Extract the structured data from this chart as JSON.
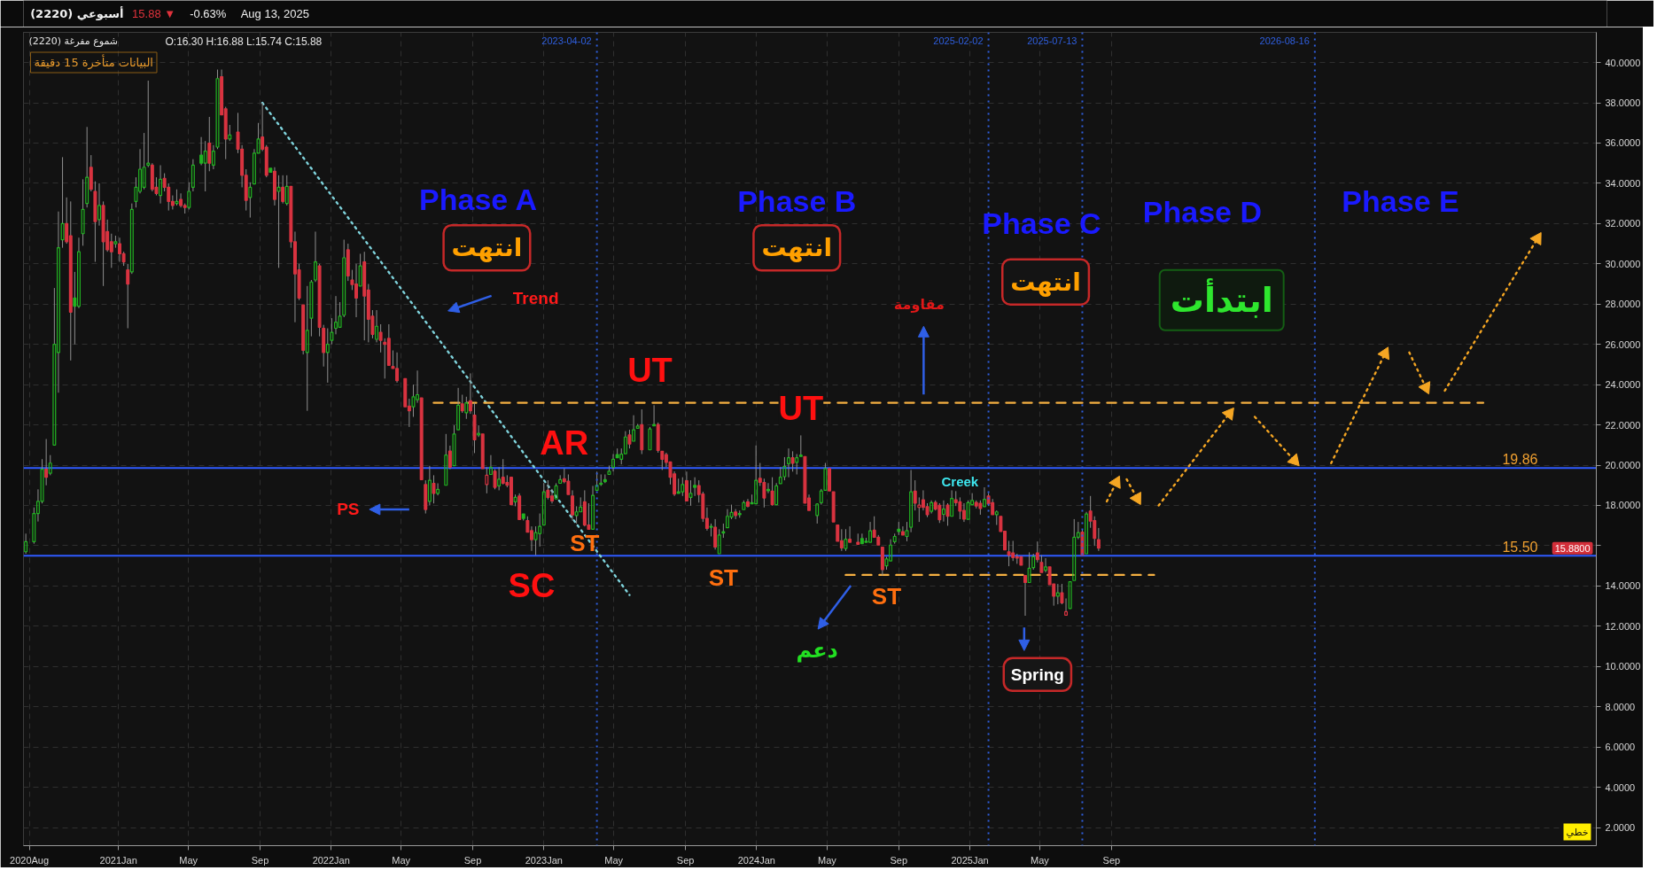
{
  "chart_data": {
    "type": "candlestick",
    "title": "(2220)  أسبوعي",
    "subtitle": "(2220)  شموع مفرغة",
    "xlim": [
      "2020-07-22",
      "2027-12-12"
    ],
    "ylim": [
      1.1,
      41.5
    ],
    "xticks": [
      {
        "value": "2020-08-01",
        "label": "2020Aug"
      },
      {
        "value": "2021-01-01",
        "label": "2021Jan"
      },
      {
        "value": "2021-05-01",
        "label": "May"
      },
      {
        "value": "2021-09-01",
        "label": "Sep"
      },
      {
        "value": "2022-01-01",
        "label": "2022Jan"
      },
      {
        "value": "2022-05-01",
        "label": "May"
      },
      {
        "value": "2022-09-01",
        "label": "Sep"
      },
      {
        "value": "2023-01-01",
        "label": "2023Jan"
      },
      {
        "value": "2023-05-01",
        "label": "May"
      },
      {
        "value": "2023-09-01",
        "label": "Sep"
      },
      {
        "value": "2024-01-01",
        "label": "2024Jan"
      },
      {
        "value": "2024-05-01",
        "label": "May"
      },
      {
        "value": "2024-09-01",
        "label": "Sep"
      },
      {
        "value": "2025-01-01",
        "label": "2025Jan"
      },
      {
        "value": "2025-05-01",
        "label": "May"
      },
      {
        "value": "2025-09-01",
        "label": "Sep"
      }
    ],
    "yticks": [
      {
        "value": 2,
        "label": "2.0000"
      },
      {
        "value": 4,
        "label": "4.0000"
      },
      {
        "value": 6,
        "label": "6.0000"
      },
      {
        "value": 8,
        "label": "8.0000"
      },
      {
        "value": 10,
        "label": "10.0000"
      },
      {
        "value": 12,
        "label": "12.0000"
      },
      {
        "value": 14,
        "label": "14.0000"
      },
      {
        "value": 16,
        "label": null
      },
      {
        "value": 18,
        "label": "18.0000"
      },
      {
        "value": 20,
        "label": "20.0000"
      },
      {
        "value": 22,
        "label": "22.0000"
      },
      {
        "value": 24,
        "label": "24.0000"
      },
      {
        "value": 26,
        "label": "26.0000"
      },
      {
        "value": 28,
        "label": "28.0000"
      },
      {
        "value": 30,
        "label": "30.0000"
      },
      {
        "value": 32,
        "label": "32.0000"
      },
      {
        "value": 34,
        "label": "34.0000"
      },
      {
        "value": 36,
        "label": "36.0000"
      },
      {
        "value": 38,
        "label": "38.0000"
      },
      {
        "value": 40,
        "label": "40.0000"
      }
    ],
    "grid": true,
    "x": [
      "2020-07-26",
      "2020-08-09",
      "2020-08-16",
      "2020-08-23",
      "2020-08-30",
      "2020-09-06",
      "2020-09-13",
      "2020-09-20",
      "2020-09-27",
      "2020-10-04",
      "2020-10-11",
      "2020-10-18",
      "2020-10-25",
      "2020-11-01",
      "2020-11-08",
      "2020-11-15",
      "2020-11-22",
      "2020-11-29",
      "2020-12-06",
      "2020-12-13",
      "2020-12-20",
      "2020-12-27",
      "2021-01-03",
      "2021-01-10",
      "2021-01-17",
      "2021-01-24",
      "2021-01-31",
      "2021-02-07",
      "2021-02-14",
      "2021-02-21",
      "2021-02-28",
      "2021-03-07",
      "2021-03-14",
      "2021-03-21",
      "2021-03-28",
      "2021-04-04",
      "2021-04-11",
      "2021-04-18",
      "2021-04-25",
      "2021-05-02",
      "2021-05-09",
      "2021-05-23",
      "2021-05-30",
      "2021-06-06",
      "2021-06-13",
      "2021-06-20",
      "2021-06-27",
      "2021-07-04",
      "2021-07-11",
      "2021-07-25",
      "2021-08-01",
      "2021-08-08",
      "2021-08-15",
      "2021-08-22",
      "2021-08-29",
      "2021-09-05",
      "2021-09-12",
      "2021-09-19",
      "2021-09-26",
      "2021-10-03",
      "2021-10-10",
      "2021-10-17",
      "2021-10-24",
      "2021-10-31",
      "2021-11-07",
      "2021-11-14",
      "2021-11-21",
      "2021-11-28",
      "2021-12-05",
      "2021-12-12",
      "2021-12-19",
      "2021-12-26",
      "2022-01-02",
      "2022-01-09",
      "2022-01-16",
      "2022-01-23",
      "2022-01-30",
      "2022-02-06",
      "2022-02-13",
      "2022-02-20",
      "2022-02-27",
      "2022-03-06",
      "2022-03-13",
      "2022-03-20",
      "2022-03-27",
      "2022-04-03",
      "2022-04-10",
      "2022-04-17",
      "2022-04-24",
      "2022-05-08",
      "2022-05-15",
      "2022-05-22",
      "2022-05-29",
      "2022-06-05",
      "2022-06-12",
      "2022-06-19",
      "2022-06-26",
      "2022-07-03",
      "2022-07-17",
      "2022-07-24",
      "2022-07-31",
      "2022-08-07",
      "2022-08-14",
      "2022-08-21",
      "2022-08-28",
      "2022-09-04",
      "2022-09-11",
      "2022-09-18",
      "2022-09-25",
      "2022-10-02",
      "2022-10-09",
      "2022-10-16",
      "2022-10-23",
      "2022-10-30",
      "2022-11-06",
      "2022-11-13",
      "2022-11-20",
      "2022-11-27",
      "2022-12-04",
      "2022-12-11",
      "2022-12-18",
      "2022-12-25",
      "2023-01-01",
      "2023-01-08",
      "2023-01-15",
      "2023-01-22",
      "2023-01-29",
      "2023-02-05",
      "2023-02-12",
      "2023-02-19",
      "2023-02-26",
      "2023-03-05",
      "2023-03-12",
      "2023-03-19",
      "2023-03-26",
      "2023-04-02",
      "2023-04-09",
      "2023-04-16",
      "2023-04-23",
      "2023-04-30",
      "2023-05-07",
      "2023-05-14",
      "2023-05-21",
      "2023-05-28",
      "2023-06-04",
      "2023-06-11",
      "2023-06-18",
      "2023-07-02",
      "2023-07-09",
      "2023-07-16",
      "2023-07-23",
      "2023-07-30",
      "2023-08-06",
      "2023-08-13",
      "2023-08-20",
      "2023-08-27",
      "2023-09-03",
      "2023-09-10",
      "2023-09-17",
      "2023-09-24",
      "2023-10-01",
      "2023-10-08",
      "2023-10-15",
      "2023-10-22",
      "2023-10-29",
      "2023-11-05",
      "2023-11-12",
      "2023-11-19",
      "2023-11-26",
      "2023-12-03",
      "2023-12-10",
      "2023-12-17",
      "2023-12-24",
      "2023-12-31",
      "2024-01-07",
      "2024-01-14",
      "2024-01-21",
      "2024-01-28",
      "2024-02-04",
      "2024-02-11",
      "2024-02-18",
      "2024-02-25",
      "2024-03-03",
      "2024-03-10",
      "2024-03-17",
      "2024-03-24",
      "2024-03-31",
      "2024-04-14",
      "2024-04-21",
      "2024-04-28",
      "2024-05-05",
      "2024-05-12",
      "2024-05-19",
      "2024-05-26",
      "2024-06-02",
      "2024-06-09",
      "2024-06-23",
      "2024-06-30",
      "2024-07-07",
      "2024-07-14",
      "2024-07-21",
      "2024-07-28",
      "2024-08-04",
      "2024-08-11",
      "2024-08-18",
      "2024-08-25",
      "2024-09-01",
      "2024-09-08",
      "2024-09-15",
      "2024-09-22",
      "2024-09-29",
      "2024-10-06",
      "2024-10-13",
      "2024-10-20",
      "2024-10-27",
      "2024-11-03",
      "2024-11-10",
      "2024-11-17",
      "2024-11-24",
      "2024-12-01",
      "2024-12-08",
      "2024-12-15",
      "2024-12-22",
      "2024-12-29",
      "2025-01-05",
      "2025-01-12",
      "2025-01-19",
      "2025-01-26",
      "2025-02-02",
      "2025-02-09",
      "2025-02-16",
      "2025-02-23",
      "2025-03-02",
      "2025-03-09",
      "2025-03-16",
      "2025-03-23",
      "2025-03-30",
      "2025-04-06",
      "2025-04-13",
      "2025-04-20",
      "2025-04-27",
      "2025-05-04",
      "2025-05-11",
      "2025-05-18",
      "2025-05-25",
      "2025-06-01",
      "2025-06-08",
      "2025-06-15",
      "2025-06-22",
      "2025-06-29",
      "2025-07-06",
      "2025-07-13",
      "2025-07-20",
      "2025-07-27",
      "2025-08-03",
      "2025-08-10"
    ],
    "ohlc": [
      [
        15.7,
        16.6,
        15.6,
        16.2
      ],
      [
        16.2,
        17.9,
        16.1,
        17.6
      ],
      [
        17.6,
        18.8,
        17.2,
        18.2
      ],
      [
        18.2,
        20.3,
        18.1,
        19.8
      ],
      [
        19.8,
        21.3,
        19.0,
        19.4
      ],
      [
        19.6,
        20.5,
        19.5,
        20.1
      ],
      [
        21.0,
        28.8,
        21.0,
        26.0
      ],
      [
        25.6,
        32.6,
        23.6,
        30.8
      ],
      [
        31.2,
        35.3,
        30.8,
        32.0
      ],
      [
        32.0,
        33.3,
        31.0,
        31.1
      ],
      [
        31.4,
        33.1,
        25.2,
        27.6
      ],
      [
        28.3,
        29.6,
        26.0,
        27.9
      ],
      [
        27.9,
        31.3,
        27.8,
        30.6
      ],
      [
        31.5,
        34.2,
        30.9,
        32.7
      ],
      [
        33.0,
        36.8,
        32.8,
        34.3
      ],
      [
        34.8,
        35.4,
        33.6,
        33.7
      ],
      [
        33.6,
        34.1,
        30.1,
        32.1
      ],
      [
        32.2,
        34.0,
        31.9,
        32.9
      ],
      [
        32.9,
        33.1,
        28.9,
        31.1
      ],
      [
        31.6,
        32.2,
        30.6,
        30.7
      ],
      [
        31.1,
        31.5,
        29.8,
        30.6
      ],
      [
        31.0,
        31.4,
        30.8,
        31.1
      ],
      [
        31.0,
        31.3,
        30.1,
        30.5
      ],
      [
        30.5,
        30.6,
        29.9,
        30.1
      ],
      [
        29.7,
        30.0,
        26.8,
        29.0
      ],
      [
        29.6,
        33.0,
        29.5,
        32.7
      ],
      [
        33.1,
        34.3,
        32.8,
        33.8
      ],
      [
        33.6,
        35.7,
        33.5,
        34.7
      ],
      [
        33.8,
        36.5,
        33.7,
        34.8
      ],
      [
        34.9,
        39.1,
        34.8,
        35.0
      ],
      [
        34.9,
        35.0,
        33.6,
        33.7
      ],
      [
        33.8,
        34.3,
        33.4,
        33.5
      ],
      [
        33.4,
        34.9,
        33.0,
        34.2
      ],
      [
        34.25,
        34.5,
        33.6,
        33.8
      ],
      [
        33.8,
        34.0,
        32.65,
        33.1
      ],
      [
        33.1,
        33.4,
        32.7,
        32.9
      ],
      [
        33.0,
        33.7,
        32.9,
        33.1
      ],
      [
        33.2,
        33.5,
        32.8,
        32.9
      ],
      [
        32.9,
        33.0,
        32.5,
        32.8
      ],
      [
        32.8,
        34.05,
        32.7,
        33.6
      ],
      [
        33.8,
        35.2,
        33.6,
        34.9
      ],
      [
        35.4,
        36.3,
        34.9,
        35.0
      ],
      [
        35.0,
        36.1,
        33.6,
        35.6
      ],
      [
        36.0,
        37.3,
        34.6,
        35.0
      ],
      [
        34.9,
        35.9,
        34.7,
        35.6
      ],
      [
        35.8,
        39.65,
        35.7,
        39.2
      ],
      [
        39.3,
        39.65,
        37.4,
        37.4
      ],
      [
        37.7,
        37.8,
        35.2,
        36.2
      ],
      [
        36.2,
        36.9,
        36.1,
        36.4
      ],
      [
        36.55,
        37.5,
        35.5,
        35.7
      ],
      [
        35.7,
        35.9,
        33.8,
        34.4
      ],
      [
        34.4,
        34.7,
        32.65,
        33.15
      ],
      [
        33.3,
        34.05,
        32.3,
        33.8
      ],
      [
        33.97,
        35.7,
        33.97,
        35.5
      ],
      [
        35.5,
        37.0,
        35.5,
        36.2
      ],
      [
        36.3,
        38.0,
        35.6,
        35.7
      ],
      [
        35.8,
        35.9,
        34.3,
        34.4
      ],
      [
        34.75,
        34.75,
        34.55,
        34.55
      ],
      [
        34.6,
        34.8,
        32.9,
        33.2
      ],
      [
        33.6,
        34.4,
        29.8,
        33.8
      ],
      [
        33.8,
        34.4,
        33.0,
        33.1
      ],
      [
        33.0,
        34.4,
        32.9,
        33.85
      ],
      [
        33.85,
        33.85,
        30.8,
        31.1
      ],
      [
        31.1,
        31.6,
        27.1,
        29.5
      ],
      [
        29.7,
        30.0,
        28.2,
        28.3
      ],
      [
        27.96,
        27.96,
        25.5,
        25.7
      ],
      [
        25.6,
        28.9,
        22.7,
        26.7
      ],
      [
        27.3,
        29.2,
        26.4,
        29.1
      ],
      [
        29.2,
        31.6,
        29.1,
        30.1
      ],
      [
        29.9,
        30.0,
        26.4,
        26.85
      ],
      [
        26.8,
        26.97,
        24.9,
        25.6
      ],
      [
        25.6,
        26.8,
        24.1,
        26.0
      ],
      [
        26.2,
        27.3,
        26.0,
        26.6
      ],
      [
        26.8,
        28.4,
        26.5,
        27.1
      ],
      [
        26.85,
        28.1,
        26.85,
        27.4
      ],
      [
        27.45,
        31.2,
        27.35,
        30.3
      ],
      [
        30.7,
        31.0,
        29.15,
        29.4
      ],
      [
        29.2,
        29.7,
        28.7,
        28.97
      ],
      [
        29.0,
        30.0,
        27.35,
        28.3
      ],
      [
        28.9,
        30.5,
        28.9,
        29.9
      ],
      [
        30.1,
        30.6,
        26.2,
        28.4
      ],
      [
        28.7,
        29.0,
        26.1,
        27.25
      ],
      [
        27.4,
        27.7,
        26.3,
        26.5
      ],
      [
        26.25,
        27.7,
        26.1,
        26.9
      ],
      [
        26.6,
        27.0,
        25.6,
        26.2
      ],
      [
        26.1,
        26.3,
        24.3,
        26.0
      ],
      [
        26.3,
        27.0,
        24.96,
        24.96
      ],
      [
        24.9,
        25.7,
        24.8,
        24.8
      ],
      [
        24.8,
        25.6,
        24.1,
        24.2
      ],
      [
        24.3,
        24.3,
        22.9,
        22.9
      ],
      [
        22.94,
        23.3,
        21.9,
        22.7
      ],
      [
        22.9,
        24.0,
        22.4,
        23.4
      ],
      [
        23.25,
        24.7,
        23.1,
        23.5
      ],
      [
        23.34,
        23.34,
        19.28,
        19.28
      ],
      [
        19.04,
        19.25,
        17.6,
        17.8
      ],
      [
        18.2,
        19.97,
        18.0,
        19.25
      ],
      [
        19.1,
        19.5,
        18.1,
        18.6
      ],
      [
        18.6,
        19.1,
        18.5,
        18.8
      ],
      [
        19.0,
        21.55,
        19.0,
        20.5
      ],
      [
        20.7,
        20.97,
        19.8,
        19.9
      ],
      [
        19.97,
        21.98,
        19.97,
        21.55
      ],
      [
        21.76,
        23.84,
        21.76,
        22.98
      ],
      [
        23.05,
        23.5,
        22.6,
        22.7
      ],
      [
        22.6,
        23.4,
        22.3,
        23.1
      ],
      [
        23.2,
        24.56,
        22.55,
        22.7
      ],
      [
        22.48,
        23.1,
        20.6,
        21.26
      ],
      [
        21.5,
        21.98,
        21.4,
        21.58
      ],
      [
        21.55,
        21.55,
        19.83,
        19.83
      ],
      [
        19.04,
        19.9,
        18.6,
        19.5
      ],
      [
        19.54,
        20.5,
        19.54,
        19.9
      ],
      [
        19.7,
        19.8,
        18.8,
        18.9
      ],
      [
        18.97,
        19.9,
        18.75,
        19.3
      ],
      [
        19.4,
        20.3,
        19.04,
        19.1
      ],
      [
        19.14,
        19.5,
        18.9,
        19.0
      ],
      [
        19.4,
        19.4,
        18.04,
        18.04
      ],
      [
        18.18,
        18.54,
        17.96,
        18.4
      ],
      [
        18.47,
        18.6,
        17.3,
        17.3
      ],
      [
        17.58,
        17.58,
        17.25,
        17.35
      ],
      [
        17.25,
        17.46,
        16.67,
        16.67
      ],
      [
        16.75,
        16.96,
        15.74,
        16.3
      ],
      [
        16.3,
        16.96,
        15.53,
        16.65
      ],
      [
        16.6,
        17.6,
        15.96,
        16.96
      ],
      [
        17.03,
        19.11,
        17.03,
        18.68
      ],
      [
        18.75,
        19.25,
        18.3,
        18.4
      ],
      [
        18.47,
        18.82,
        18.1,
        18.22
      ],
      [
        18.32,
        19.1,
        18.32,
        18.97
      ],
      [
        19.1,
        19.5,
        19.1,
        19.28
      ],
      [
        19.33,
        19.83,
        19.1,
        19.18
      ],
      [
        19.2,
        19.54,
        18.54,
        18.54
      ],
      [
        18.47,
        18.75,
        17.25,
        17.53
      ],
      [
        17.5,
        17.96,
        17.1,
        17.68
      ],
      [
        17.68,
        18.4,
        17.68,
        17.92
      ],
      [
        18.18,
        18.75,
        16.96,
        17.03
      ],
      [
        17.03,
        18.11,
        16.82,
        16.82
      ],
      [
        16.82,
        18.97,
        16.82,
        18.5
      ],
      [
        18.75,
        19.68,
        18.75,
        19.0
      ],
      [
        19.11,
        19.54,
        18.97,
        19.05
      ],
      [
        19.28,
        19.54,
        19.11,
        19.18
      ],
      [
        19.54,
        19.97,
        19.54,
        19.7
      ],
      [
        19.9,
        20.55,
        19.69,
        20.29
      ],
      [
        20.52,
        20.83,
        20.37,
        20.37
      ],
      [
        20.29,
        20.83,
        20.04,
        20.55
      ],
      [
        20.57,
        21.69,
        20.57,
        21.4
      ],
      [
        21.5,
        21.76,
        20.83,
        21.05
      ],
      [
        21.19,
        22.48,
        21.19,
        21.76
      ],
      [
        21.83,
        22.05,
        21.83,
        21.94
      ],
      [
        22.01,
        22.77,
        20.55,
        20.76
      ],
      [
        20.76,
        21.9,
        20.76,
        21.8
      ],
      [
        22.02,
        22.98,
        21.95,
        21.95
      ],
      [
        22.02,
        22.12,
        20.62,
        20.73
      ],
      [
        20.69,
        20.69,
        19.76,
        20.29
      ],
      [
        20.52,
        20.62,
        19.9,
        20.14
      ],
      [
        20.16,
        20.16,
        19.04,
        19.4
      ],
      [
        19.57,
        19.69,
        18.47,
        18.57
      ],
      [
        18.68,
        19.33,
        18.6,
        18.6
      ],
      [
        18.68,
        19.4,
        18.47,
        19.04
      ],
      [
        19.23,
        19.68,
        18.22,
        18.22
      ],
      [
        18.4,
        19.25,
        17.99,
        18.6
      ],
      [
        19.0,
        19.4,
        18.47,
        18.9
      ],
      [
        18.99,
        19.25,
        18.14,
        18.54
      ],
      [
        18.57,
        18.68,
        17.18,
        17.35
      ],
      [
        17.36,
        17.9,
        16.75,
        16.86
      ],
      [
        16.96,
        17.1,
        16.46,
        16.92
      ],
      [
        16.92,
        17.32,
        15.81,
        15.93
      ],
      [
        15.6,
        16.82,
        15.6,
        16.53
      ],
      [
        16.7,
        17.1,
        16.39,
        16.63
      ],
      [
        16.89,
        17.82,
        16.89,
        17.46
      ],
      [
        17.42,
        18.04,
        17.32,
        17.65
      ],
      [
        17.68,
        17.82,
        17.32,
        17.5
      ],
      [
        17.6,
        17.75,
        17.39,
        17.54
      ],
      [
        17.79,
        18.25,
        17.79,
        18.14
      ],
      [
        18.18,
        18.32,
        17.9,
        17.96
      ],
      [
        18.14,
        18.54,
        18.08,
        18.08
      ],
      [
        18.08,
        20.98,
        18.08,
        19.25
      ],
      [
        19.35,
        20.11,
        18.97,
        19.15
      ],
      [
        19.14,
        19.33,
        17.9,
        18.37
      ],
      [
        18.8,
        19.11,
        18.61,
        18.73
      ],
      [
        18.71,
        19.4,
        17.99,
        18.04
      ],
      [
        18.04,
        19.11,
        18.04,
        18.97
      ],
      [
        19.08,
        19.9,
        19.08,
        19.4
      ],
      [
        19.43,
        20.4,
        19.25,
        19.94
      ],
      [
        20.07,
        20.83,
        19.4,
        20.37
      ],
      [
        20.37,
        20.69,
        19.68,
        20.09
      ],
      [
        20.14,
        20.55,
        19.54,
        20.37
      ],
      [
        20.5,
        21.48,
        20.43,
        20.43
      ],
      [
        20.43,
        20.43,
        18.11,
        18.11
      ],
      [
        18.37,
        18.54,
        17.75,
        17.75
      ],
      [
        17.5,
        18.11,
        17.1,
        18.07
      ],
      [
        18.14,
        18.82,
        18.04,
        18.72
      ],
      [
        18.75,
        20.11,
        18.75,
        19.83
      ],
      [
        19.83,
        19.83,
        18.72,
        18.72
      ],
      [
        18.68,
        18.68,
        17.18,
        17.18
      ],
      [
        17.03,
        17.03,
        16.22,
        16.22
      ],
      [
        16.25,
        16.82,
        15.74,
        15.89
      ],
      [
        15.86,
        16.82,
        15.74,
        16.32
      ],
      [
        16.32,
        16.96,
        16.17,
        16.17
      ],
      [
        16.17,
        16.6,
        16.07,
        16.07
      ],
      [
        16.36,
        16.6,
        16.1,
        16.1
      ],
      [
        16.17,
        16.39,
        16.17,
        16.22
      ],
      [
        16.17,
        17.18,
        16.17,
        16.74
      ],
      [
        16.77,
        17.46,
        16.39,
        16.42
      ],
      [
        16.42,
        16.53,
        16.03,
        16.03
      ],
      [
        15.93,
        15.93,
        14.52,
        14.81
      ],
      [
        15.0,
        15.45,
        14.81,
        15.34
      ],
      [
        15.24,
        16.32,
        15.24,
        16.03
      ],
      [
        16.2,
        16.6,
        16.1,
        16.46
      ],
      [
        16.82,
        17.18,
        16.53,
        16.7
      ],
      [
        16.7,
        16.96,
        16.53,
        16.53
      ],
      [
        16.46,
        17.18,
        16.22,
        16.75
      ],
      [
        16.92,
        19.76,
        16.67,
        18.68
      ],
      [
        18.71,
        19.25,
        17.75,
        18.11
      ],
      [
        17.9,
        18.4,
        17.18,
        18.02
      ],
      [
        18.28,
        18.75,
        17.75,
        17.9
      ],
      [
        17.94,
        18.11,
        17.42,
        17.54
      ],
      [
        17.71,
        18.25,
        17.6,
        18.14
      ],
      [
        18.15,
        18.25,
        17.75,
        17.82
      ],
      [
        18.01,
        18.11,
        17.13,
        17.29
      ],
      [
        17.56,
        18.25,
        17.2,
        17.82
      ],
      [
        18.02,
        18.11,
        16.99,
        17.46
      ],
      [
        17.46,
        18.75,
        17.46,
        18.35
      ],
      [
        18.28,
        18.71,
        17.97,
        18.14
      ],
      [
        18.18,
        18.4,
        17.32,
        17.72
      ],
      [
        17.75,
        18.11,
        17.18,
        17.32
      ],
      [
        17.31,
        18.25,
        17.31,
        18.14
      ],
      [
        18.04,
        18.61,
        18.04,
        18.25
      ],
      [
        18.15,
        18.25,
        17.85,
        17.97
      ],
      [
        18.11,
        18.25,
        17.54,
        17.85
      ],
      [
        17.94,
        18.9,
        17.94,
        18.3
      ],
      [
        18.47,
        18.61,
        17.97,
        18.07
      ],
      [
        18.14,
        18.32,
        17.54,
        17.54
      ],
      [
        17.54,
        17.75,
        17.03,
        17.68
      ],
      [
        17.46,
        17.46,
        16.7,
        16.7
      ],
      [
        16.72,
        16.72,
        15.79,
        15.79
      ],
      [
        15.7,
        16.24,
        14.98,
        15.53
      ],
      [
        15.64,
        16.24,
        15.24,
        15.41
      ],
      [
        15.45,
        15.6,
        15.1,
        15.38
      ],
      [
        15.45,
        15.45,
        15.03,
        15.03
      ],
      [
        14.52,
        14.52,
        12.52,
        14.17
      ],
      [
        14.17,
        15.67,
        14.17,
        14.88
      ],
      [
        14.91,
        15.6,
        14.81,
        15.45
      ],
      [
        15.64,
        16.21,
        15.17,
        15.31
      ],
      [
        15.17,
        15.53,
        14.67,
        14.67
      ],
      [
        14.78,
        15.38,
        14.67,
        14.95
      ],
      [
        14.95,
        14.95,
        14.07,
        14.07
      ],
      [
        14.1,
        14.1,
        13.02,
        13.49
      ],
      [
        13.49,
        14.1,
        13.09,
        13.66
      ],
      [
        13.66,
        14.1,
        13.09,
        13.16
      ],
      [
        12.55,
        13.38,
        12.55,
        12.72
      ],
      [
        12.88,
        14.21,
        12.88,
        14.21
      ],
      [
        14.27,
        17.32,
        14.27,
        16.42
      ],
      [
        16.42,
        17.18,
        16.32,
        16.65
      ],
      [
        16.67,
        16.8,
        15.53,
        15.53
      ],
      [
        15.6,
        17.68,
        15.6,
        17.58
      ],
      [
        17.72,
        18.47,
        16.89,
        17.22
      ],
      [
        17.25,
        17.46,
        15.99,
        16.36
      ],
      [
        16.3,
        16.88,
        15.74,
        15.88
      ]
    ],
    "colors": [
      "#22b422",
      "#22b422",
      "#22b422",
      "#22b422",
      "#d93340",
      "#22b422",
      "#22b422",
      "#22b422",
      "#22b422",
      "#d93340",
      "#d93340",
      "#22b422",
      "#22b422",
      "#22b422",
      "#22b422",
      "#d93340",
      "#d93340",
      "#22b422",
      "#d93340",
      "#d93340",
      "#d93340",
      "#22b422",
      "#d93340",
      "#d93340",
      "#d93340",
      "#22b422",
      "#22b422",
      "#22b422",
      "#22b422",
      "#22b422",
      "#d93340",
      "#d93340",
      "#22b422",
      "#d93340",
      "#d93340",
      "#d93340",
      "#22b422",
      "#d93340",
      "#d93340",
      "#22b422",
      "#22b422",
      "#22b422",
      "#22b422",
      "#d93340",
      "#22b422",
      "#22b422",
      "#d93340",
      "#d93340",
      "#22b422",
      "#d93340",
      "#d93340",
      "#d93340",
      "#22b422",
      "#22b422",
      "#22b422",
      "#d93340",
      "#d93340",
      "#22b422",
      "#d93340",
      "#22b422",
      "#d93340",
      "#22b422",
      "#d93340",
      "#d93340",
      "#d93340",
      "#d93340",
      "#22b422",
      "#22b422",
      "#22b422",
      "#d93340",
      "#d93340",
      "#22b422",
      "#22b422",
      "#22b422",
      "#22b422",
      "#22b422",
      "#d93340",
      "#d93340",
      "#d93340",
      "#22b422",
      "#d93340",
      "#d93340",
      "#d93340",
      "#22b422",
      "#d93340",
      "#d93340",
      "#d93340",
      "#d93340",
      "#d93340",
      "#d93340",
      "#d93340",
      "#22b422",
      "#22b422",
      "#d93340",
      "#d93340",
      "#22b422",
      "#d93340",
      "#22b422",
      "#22b422",
      "#d93340",
      "#22b422",
      "#22b422",
      "#d93340",
      "#22b422",
      "#d93340",
      "#d93340",
      "#22b422",
      "#d93340",
      "#d93340",
      "#22b422",
      "#d93340",
      "#22b422",
      "#d93340",
      "#d93340",
      "#d93340",
      "#22b422",
      "#d93340",
      "#22b422",
      "#d93340",
      "#d93340",
      "#22b422",
      "#22b422",
      "#22b422",
      "#d93340",
      "#d93340",
      "#22b422",
      "#22b422",
      "#d93340",
      "#d93340",
      "#d93340",
      "#22b422",
      "#22b422",
      "#d93340",
      "#d93340",
      "#22b422",
      "#22b422",
      "#22b422",
      "#22b422",
      "#22b422",
      "#22b422",
      "#22b422",
      "#22b422",
      "#22b422",
      "#d93340",
      "#22b422",
      "#22b422",
      "#d93340",
      "#22b422",
      "#22b422",
      "#d93340",
      "#d93340",
      "#d93340",
      "#d93340",
      "#d93340",
      "#22b422",
      "#22b422",
      "#d93340",
      "#22b422",
      "#22b422",
      "#d93340",
      "#d93340",
      "#d93340",
      "#22b422",
      "#d93340",
      "#22b422",
      "#22b422",
      "#22b422",
      "#22b422",
      "#d93340",
      "#22b422",
      "#22b422",
      "#d93340",
      "#22b422",
      "#22b422",
      "#d93340",
      "#d93340",
      "#22b422",
      "#d93340",
      "#22b422",
      "#22b422",
      "#22b422",
      "#22b422",
      "#d93340",
      "#22b422",
      "#22b422",
      "#d93340",
      "#d93340",
      "#22b422",
      "#22b422",
      "#22b422",
      "#d93340",
      "#d93340",
      "#d93340",
      "#d93340",
      "#22b422",
      "#d93340",
      "#d93340",
      "#22b422",
      "#22b422",
      "#22b422",
      "#d93340",
      "#d93340",
      "#d93340",
      "#22b422",
      "#22b422",
      "#22b422",
      "#22b422",
      "#d93340",
      "#22b422",
      "#22b422",
      "#d93340",
      "#d93340",
      "#d93340",
      "#d93340",
      "#22b422",
      "#d93340",
      "#d93340",
      "#22b422",
      "#d93340",
      "#22b422",
      "#d93340",
      "#d93340",
      "#d93340",
      "#22b422",
      "#22b422",
      "#d93340",
      "#d93340",
      "#22b422",
      "#d93340",
      "#d93340",
      "#22b422",
      "#d93340",
      "#d93340",
      "#d93340",
      "#d93340",
      "#d93340",
      "#d93340",
      "#d93340",
      "#22b422",
      "#22b422",
      "#d93340",
      "#d93340",
      "#22b422",
      "#d93340",
      "#d93340",
      "#22b422",
      "#d93340",
      "#d93340",
      "#22b422",
      "#22b422",
      "#22b422",
      "#d93340",
      "#22b422",
      "#d93340",
      "#d93340",
      "#d93340"
    ],
    "series": [
      {
        "type": "line",
        "x": [
          "2021-09-05",
          "2023-05-28"
        ],
        "values": [
          38.0,
          13.55
        ],
        "color": "#7fd3dc",
        "line_style": "dotted"
      },
      {
        "type": "line",
        "x": [
          "2022-06-26",
          "2027-06-01"
        ],
        "values": [
          23.1,
          23.1
        ],
        "color": "#f5b041",
        "line_style": "dashed"
      },
      {
        "type": "line",
        "x": [
          "2024-06-02",
          "2025-11-13"
        ],
        "values": [
          14.55,
          14.55
        ],
        "color": "#f5b041",
        "line_style": "dashed"
      },
      {
        "type": "line",
        "x": [
          "2025-08-24",
          "2025-09-12"
        ],
        "values": [
          18.2,
          19.3
        ],
        "color": "#f5a623",
        "line_style": "dotted",
        "marker": "triangle"
      },
      {
        "type": "line",
        "x": [
          "2025-09-27",
          "2025-10-18"
        ],
        "values": [
          19.3,
          18.2
        ],
        "color": "#f5a623",
        "line_style": "dotted",
        "marker": "triangle"
      },
      {
        "type": "line",
        "x": [
          "2025-11-21",
          "2026-03-26"
        ],
        "values": [
          18.0,
          22.7
        ],
        "color": "#f5a623",
        "line_style": "dotted",
        "marker": "triangle"
      },
      {
        "type": "line",
        "x": [
          "2026-05-05",
          "2026-07-16"
        ],
        "values": [
          22.4,
          20.1
        ],
        "color": "#f5a623",
        "line_style": "dotted",
        "marker": "triangle"
      },
      {
        "type": "line",
        "x": [
          "2026-09-13",
          "2026-12-17"
        ],
        "values": [
          20.1,
          25.7
        ],
        "color": "#f5a623",
        "line_style": "dotted",
        "marker": "triangle"
      },
      {
        "type": "line",
        "x": [
          "2027-01-25",
          "2027-02-25"
        ],
        "values": [
          25.6,
          23.7
        ],
        "color": "#f5a623",
        "line_style": "dotted",
        "marker": "triangle"
      },
      {
        "type": "line",
        "x": [
          "2027-03-27",
          "2027-09-05"
        ],
        "values": [
          23.7,
          31.4
        ],
        "color": "#f5a623",
        "line_style": "dotted",
        "marker": "triangle"
      }
    ],
    "ref_lines": [
      {
        "axis": "x",
        "value": "2023-04-02",
        "label": "2023-04-02",
        "color": "#2f5fe0",
        "line_style": "dotted"
      },
      {
        "axis": "x",
        "value": "2025-02-02",
        "label": "2025-02-02",
        "color": "#2f5fe0",
        "line_style": "dotted"
      },
      {
        "axis": "x",
        "value": "2025-07-13",
        "label": "2025-07-13",
        "color": "#2f5fe0",
        "line_style": "dotted"
      },
      {
        "axis": "x",
        "value": "2026-08-16",
        "label": "2026-08-16",
        "color": "#2f5fe0",
        "line_style": "dotted"
      },
      {
        "axis": "y",
        "value": 19.86,
        "label": "19.86",
        "color": "#2f5bff",
        "line_style": "solid"
      },
      {
        "axis": "y",
        "value": 15.5,
        "label": "15.50",
        "color": "#2f5bff",
        "line_style": "solid"
      }
    ],
    "annotations": [
      "15.88 ▼",
      "-0.63%",
      "Aug 13, 2025",
      "O:16.30  H:16.88  L:15.74  C:15.88",
      "البيانات متأخرة 15 دقيقة",
      "خطي",
      "15.8800",
      "Phase A",
      "انتهت",
      "Phase B",
      "انتهت",
      "Phase C",
      "انتهت",
      "Phase D",
      "ابتدأت",
      "Phase E",
      "Trend",
      "PS",
      "SC",
      "AR",
      "ST",
      "UT",
      "ST",
      "UT",
      "مقاومة",
      "ST",
      "دعم",
      "Creek",
      "Spring"
    ]
  }
}
